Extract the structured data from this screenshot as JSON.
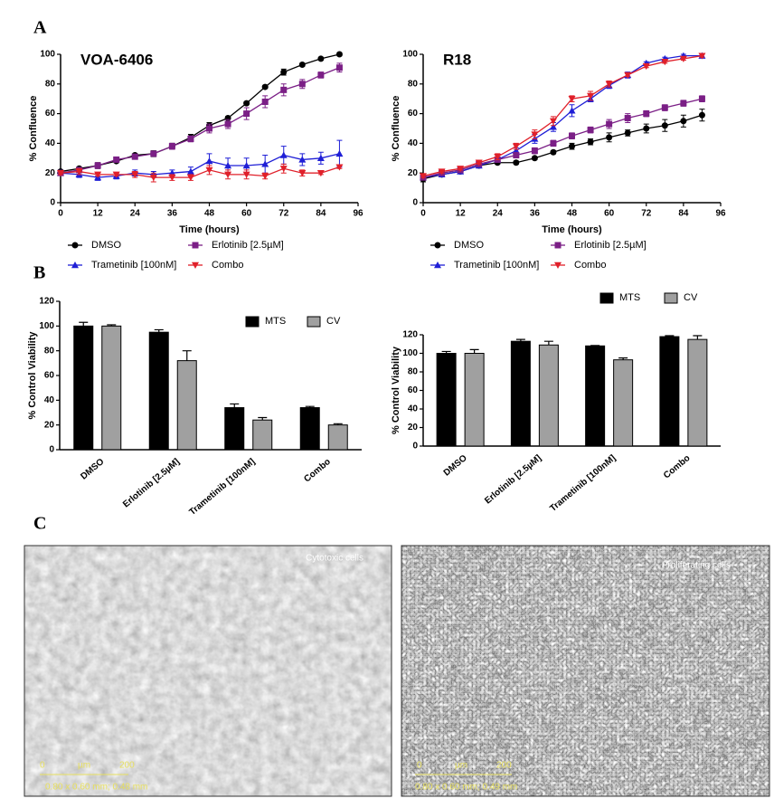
{
  "panels": [
    "A",
    "B",
    "C"
  ],
  "chart_data": [
    {
      "type": "line",
      "title": "VOA-6406",
      "x_label": "Time (hours)",
      "y_label": "% Confluence",
      "x": [
        0,
        6,
        12,
        18,
        24,
        30,
        36,
        42,
        48,
        54,
        60,
        66,
        72,
        78,
        84,
        90
      ],
      "xlim": [
        0,
        96
      ],
      "xticks": [
        0,
        12,
        24,
        36,
        48,
        60,
        72,
        84,
        96
      ],
      "ylim": [
        0,
        100
      ],
      "yticks": [
        0,
        20,
        40,
        60,
        80,
        100
      ],
      "legend": "bottom",
      "series": [
        {
          "name": "DMSO",
          "color": "#000000",
          "marker": "circle",
          "values": [
            21,
            23,
            25,
            28,
            32,
            33,
            38,
            44,
            52,
            57,
            67,
            78,
            88,
            93,
            97,
            100
          ],
          "errors": [
            1,
            1,
            2,
            1,
            1,
            2,
            2,
            2,
            2,
            1,
            1,
            1,
            2,
            1,
            1,
            1
          ]
        },
        {
          "name": "Trametinib [100nM]",
          "color": "#1f1fd6",
          "marker": "triangle-up",
          "values": [
            20,
            19,
            17,
            18,
            20,
            19,
            20,
            21,
            28,
            25,
            25,
            26,
            32,
            29,
            30,
            33
          ],
          "errors": [
            1,
            2,
            2,
            2,
            2,
            2,
            2,
            3,
            5,
            5,
            5,
            6,
            6,
            4,
            4,
            9
          ]
        },
        {
          "name": "Erlotinib [2.5µM]",
          "color": "#7b1f86",
          "marker": "square",
          "values": [
            20,
            22,
            25,
            29,
            31,
            33,
            38,
            43,
            50,
            53,
            60,
            68,
            76,
            80,
            86,
            91
          ],
          "errors": [
            1,
            1,
            2,
            1,
            1,
            1,
            2,
            2,
            3,
            3,
            4,
            4,
            4,
            3,
            2,
            3
          ]
        },
        {
          "name": "Combo",
          "color": "#e0202a",
          "marker": "triangle-down",
          "values": [
            20,
            21,
            19,
            19,
            19,
            17,
            17,
            17,
            22,
            19,
            19,
            18,
            23,
            20,
            20,
            24
          ],
          "errors": [
            1,
            2,
            1,
            1,
            2,
            3,
            2,
            2,
            3,
            3,
            3,
            2,
            3,
            2,
            1,
            1
          ]
        }
      ]
    },
    {
      "type": "line",
      "title": "R18",
      "x_label": "Time (hours)",
      "y_label": "% Confluence",
      "x": [
        0,
        6,
        12,
        18,
        24,
        30,
        36,
        42,
        48,
        54,
        60,
        66,
        72,
        78,
        84,
        90
      ],
      "xlim": [
        0,
        96
      ],
      "xticks": [
        0,
        12,
        24,
        36,
        48,
        60,
        72,
        84,
        96
      ],
      "ylim": [
        0,
        100
      ],
      "yticks": [
        0,
        20,
        40,
        60,
        80,
        100
      ],
      "legend": "bottom",
      "series": [
        {
          "name": "DMSO",
          "color": "#000000",
          "marker": "circle",
          "values": [
            16,
            19,
            21,
            25,
            27,
            27,
            30,
            34,
            38,
            41,
            44,
            47,
            50,
            52,
            55,
            59
          ],
          "errors": [
            2,
            1,
            1,
            1,
            1,
            1,
            1,
            1,
            2,
            2,
            3,
            2,
            3,
            4,
            4,
            4
          ]
        },
        {
          "name": "Trametinib [100nM]",
          "color": "#1f1fd6",
          "marker": "triangle-up",
          "values": [
            17,
            19,
            21,
            25,
            29,
            35,
            43,
            51,
            62,
            70,
            79,
            86,
            94,
            97,
            99,
            99
          ],
          "errors": [
            1,
            1,
            1,
            1,
            1,
            2,
            3,
            3,
            4,
            2,
            2,
            2,
            1,
            1,
            1,
            1
          ]
        },
        {
          "name": "Erlotinib [2.5µM]",
          "color": "#7b1f86",
          "marker": "square",
          "values": [
            17,
            20,
            22,
            26,
            29,
            32,
            35,
            40,
            45,
            49,
            53,
            57,
            60,
            64,
            67,
            70
          ],
          "errors": [
            1,
            1,
            1,
            1,
            1,
            1,
            2,
            2,
            2,
            2,
            3,
            3,
            2,
            2,
            2,
            2
          ]
        },
        {
          "name": "Combo",
          "color": "#e0202a",
          "marker": "triangle-down",
          "values": [
            18,
            21,
            23,
            27,
            31,
            38,
            46,
            55,
            70,
            72,
            80,
            86,
            92,
            95,
            97,
            99
          ],
          "errors": [
            1,
            1,
            1,
            1,
            2,
            2,
            3,
            3,
            2,
            3,
            2,
            1,
            1,
            1,
            1,
            1
          ]
        }
      ]
    },
    {
      "type": "bar",
      "y_label": "% Control Viability",
      "categories": [
        "DMSO",
        "Erlotinib [2.5µM]",
        "Trametinib [100nM]",
        "Combo"
      ],
      "ylim": [
        0,
        120
      ],
      "yticks": [
        0,
        20,
        40,
        60,
        80,
        100,
        120
      ],
      "legend": "upper right",
      "series": [
        {
          "name": "MTS",
          "color": "#000000",
          "values": [
            100,
            95,
            34,
            34
          ],
          "errors": [
            3,
            2,
            3,
            1
          ]
        },
        {
          "name": "CV",
          "color": "#a0a0a0",
          "values": [
            100,
            72,
            24,
            20
          ],
          "errors": [
            1,
            8,
            2,
            1
          ]
        }
      ]
    },
    {
      "type": "bar",
      "y_label": "% Control Viability",
      "categories": [
        "DMSO",
        "Erlotinib [2.5µM]",
        "Trametinib [100nM]",
        "Combo"
      ],
      "ylim": [
        0,
        120
      ],
      "yticks": [
        0,
        20,
        40,
        60,
        80,
        100,
        120
      ],
      "legend": "top",
      "series": [
        {
          "name": "MTS",
          "color": "#000000",
          "values": [
            100,
            113,
            108,
            118
          ],
          "errors": [
            2,
            2,
            0.5,
            1
          ]
        },
        {
          "name": "CV",
          "color": "#a0a0a0",
          "values": [
            100,
            109,
            93,
            115
          ],
          "errors": [
            4,
            4,
            2,
            4
          ]
        }
      ]
    }
  ],
  "images": [
    {
      "label": "Cytotoxic cells",
      "scale_start": "0",
      "scale_unit": "µm",
      "scale_end": "200",
      "info": "0.80 x 0.60 mm; 0.48 mm"
    },
    {
      "label": "Proliferating cells",
      "scale_start": "0",
      "scale_unit": "µm",
      "scale_end": "200",
      "info": "0.80 x 0.60 mm; 0.49 mm"
    }
  ]
}
